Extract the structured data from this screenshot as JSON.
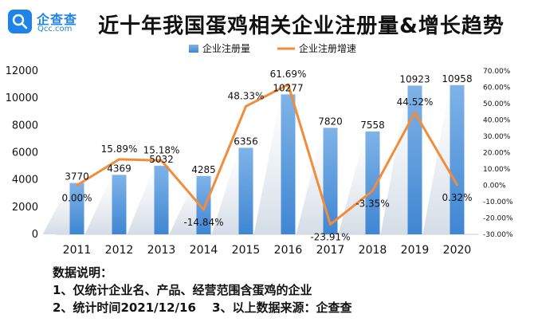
{
  "logo": {
    "name_cn": "企查查",
    "name_en": "Qcc.com"
  },
  "notes": {
    "heading": "数据说明：",
    "line1": "1、仅统计企业名、产品、经营范围含蛋鸡的企业",
    "line2": "2、统计时间2021/12/16　 3、以上数据来源：企查查"
  },
  "colors": {
    "bar_top": "#7fb3e8",
    "bar_bottom": "#3f86d3",
    "line": "#f28c38",
    "text": "#111111"
  },
  "chart_data": {
    "type": "bar",
    "title": "近十年我国蛋鸡相关企业注册量&增长趋势",
    "categories": [
      "2011",
      "2012",
      "2013",
      "2014",
      "2015",
      "2016",
      "2017",
      "2018",
      "2019",
      "2020"
    ],
    "series": [
      {
        "name": "企业注册量",
        "type": "bar",
        "axis": "left",
        "values": [
          3770,
          4369,
          5032,
          4285,
          6356,
          10277,
          7820,
          7558,
          10923,
          10958
        ],
        "labels": [
          "3770",
          "4369",
          "5032",
          "4285",
          "6356",
          "10277",
          "7820",
          "7558",
          "10923",
          "10958"
        ]
      },
      {
        "name": "企业注册增速",
        "type": "line",
        "axis": "right",
        "values": [
          0.0,
          15.89,
          15.18,
          -14.84,
          48.33,
          61.69,
          -23.91,
          -3.35,
          44.52,
          0.32
        ],
        "labels": [
          "0.00%",
          "15.89%",
          "15.18%",
          "-14.84%",
          "48.33%",
          "61.69%",
          "-23.91%",
          "-3.35%",
          "44.52%",
          "0.32%"
        ]
      }
    ],
    "y_left": {
      "min": 0,
      "max": 12000,
      "ticks": [
        "0",
        "2000",
        "4000",
        "6000",
        "8000",
        "10000",
        "12000"
      ]
    },
    "y_right": {
      "min": -30,
      "max": 70,
      "ticks": [
        "70.00%",
        "60.00%",
        "50.00%",
        "40.00%",
        "30.00%",
        "20.00%",
        "10.00%",
        "0.00%",
        "-10.00%",
        "-20.00%",
        "-30.00%"
      ]
    },
    "legend": "top-center",
    "grid": false
  }
}
